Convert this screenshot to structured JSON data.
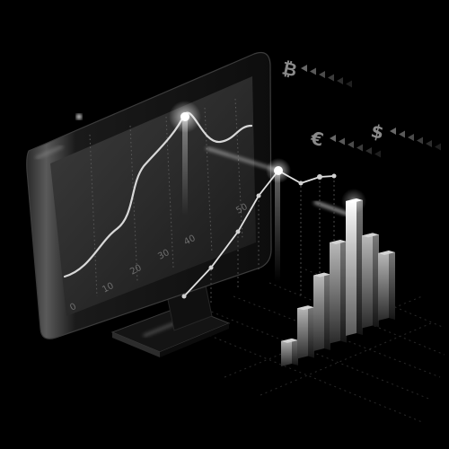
{
  "monitor": {
    "tick_labels": [
      "0",
      "10",
      "20",
      "30",
      "40",
      "50"
    ]
  },
  "currencies": [
    {
      "symbol": "₿"
    },
    {
      "symbol": "€"
    },
    {
      "symbol": "$"
    }
  ],
  "bars": {
    "values": [
      3,
      6,
      9,
      12,
      16,
      11,
      8
    ],
    "highlight_index": 4
  },
  "colors": {
    "background": "#000000",
    "glow": "#ffffff",
    "bar_face": "#8c8c8c",
    "highlight_bar": "#e8e8e8"
  }
}
